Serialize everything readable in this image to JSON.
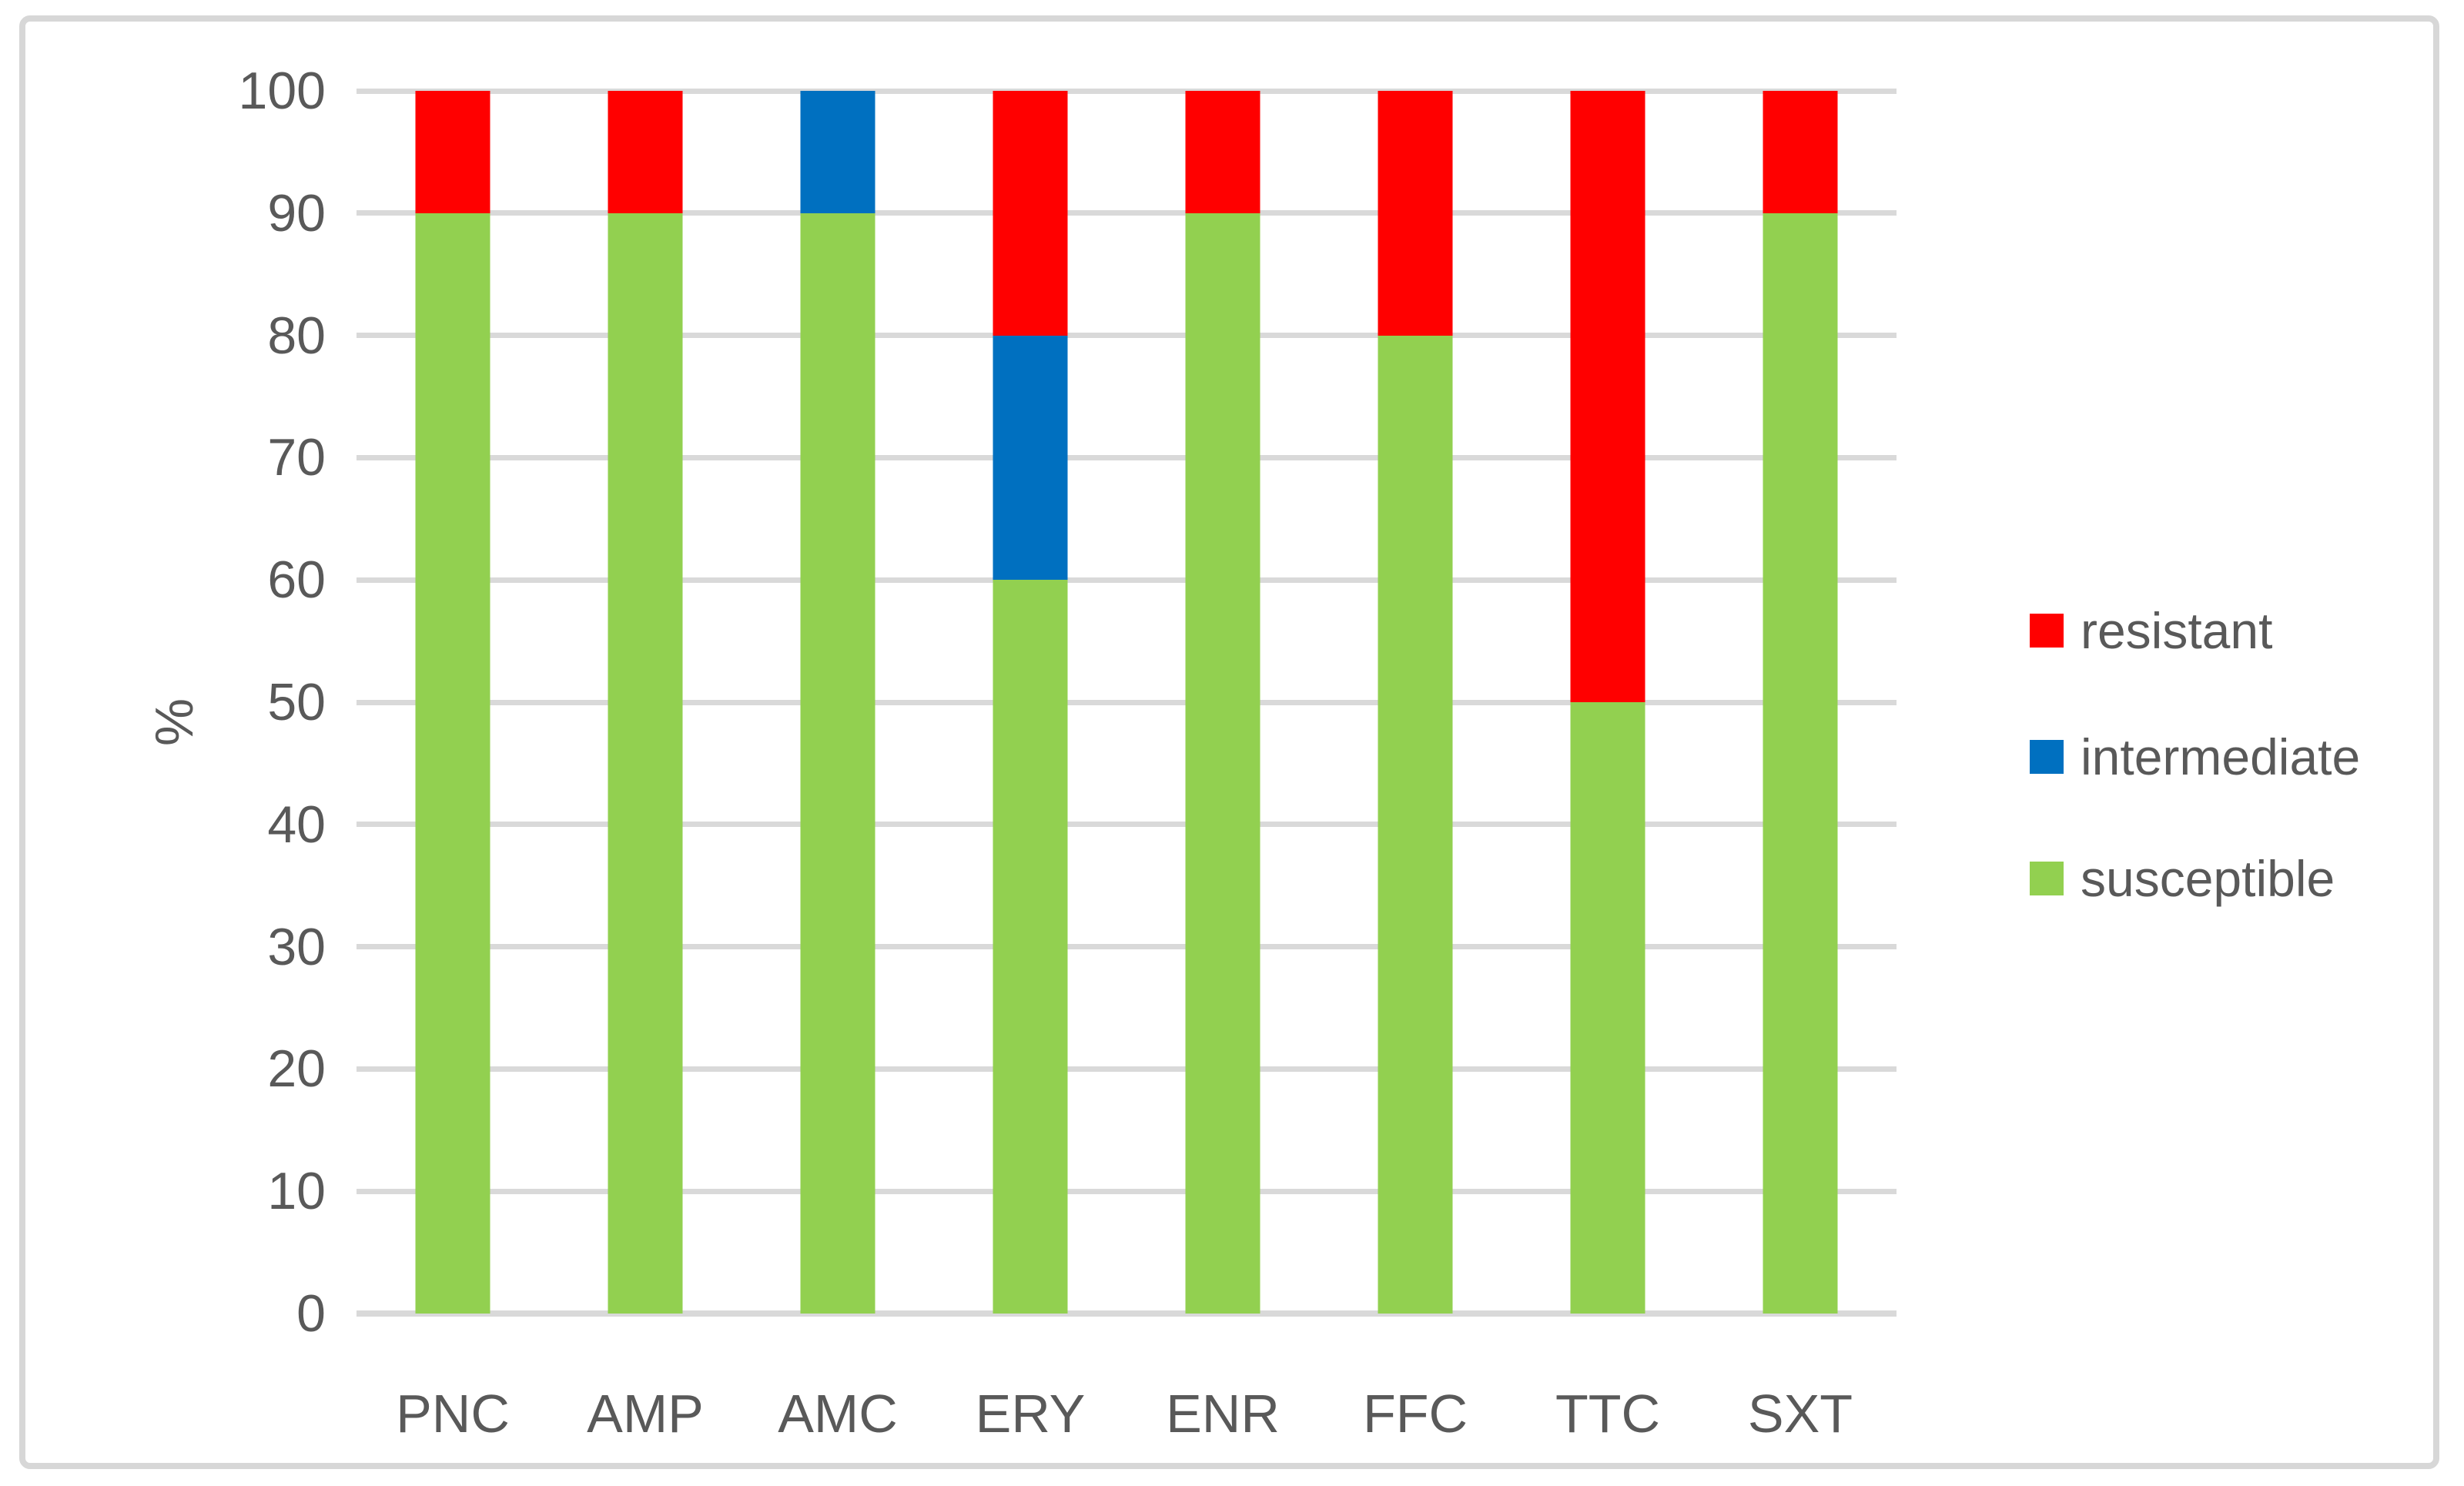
{
  "chart_data": {
    "type": "bar",
    "stacked": true,
    "orientation": "vertical",
    "categories": [
      "PNC",
      "AMP",
      "AMC",
      "ERY",
      "ENR",
      "FFC",
      "TTC",
      "SXT"
    ],
    "series": [
      {
        "name": "susceptible",
        "color": "#92D050",
        "values": [
          90,
          90,
          90,
          60,
          90,
          80,
          50,
          90
        ]
      },
      {
        "name": "intermediate",
        "color": "#0070C0",
        "values": [
          0,
          0,
          10,
          20,
          0,
          0,
          0,
          0
        ]
      },
      {
        "name": "resistant",
        "color": "#FF0000",
        "values": [
          10,
          10,
          0,
          20,
          10,
          20,
          50,
          10
        ]
      }
    ],
    "title": "",
    "xlabel": "",
    "ylabel": "%",
    "ylim": [
      0,
      100
    ],
    "yticks": [
      0,
      10,
      20,
      30,
      40,
      50,
      60,
      70,
      80,
      90,
      100
    ],
    "grid": "horizontal",
    "gridline_color": "#D9D9D9",
    "axis_text_color": "#595959",
    "frame_border_color": "#D7D7D7",
    "legend": {
      "position": "right",
      "order": [
        "resistant",
        "intermediate",
        "susceptible"
      ]
    }
  }
}
